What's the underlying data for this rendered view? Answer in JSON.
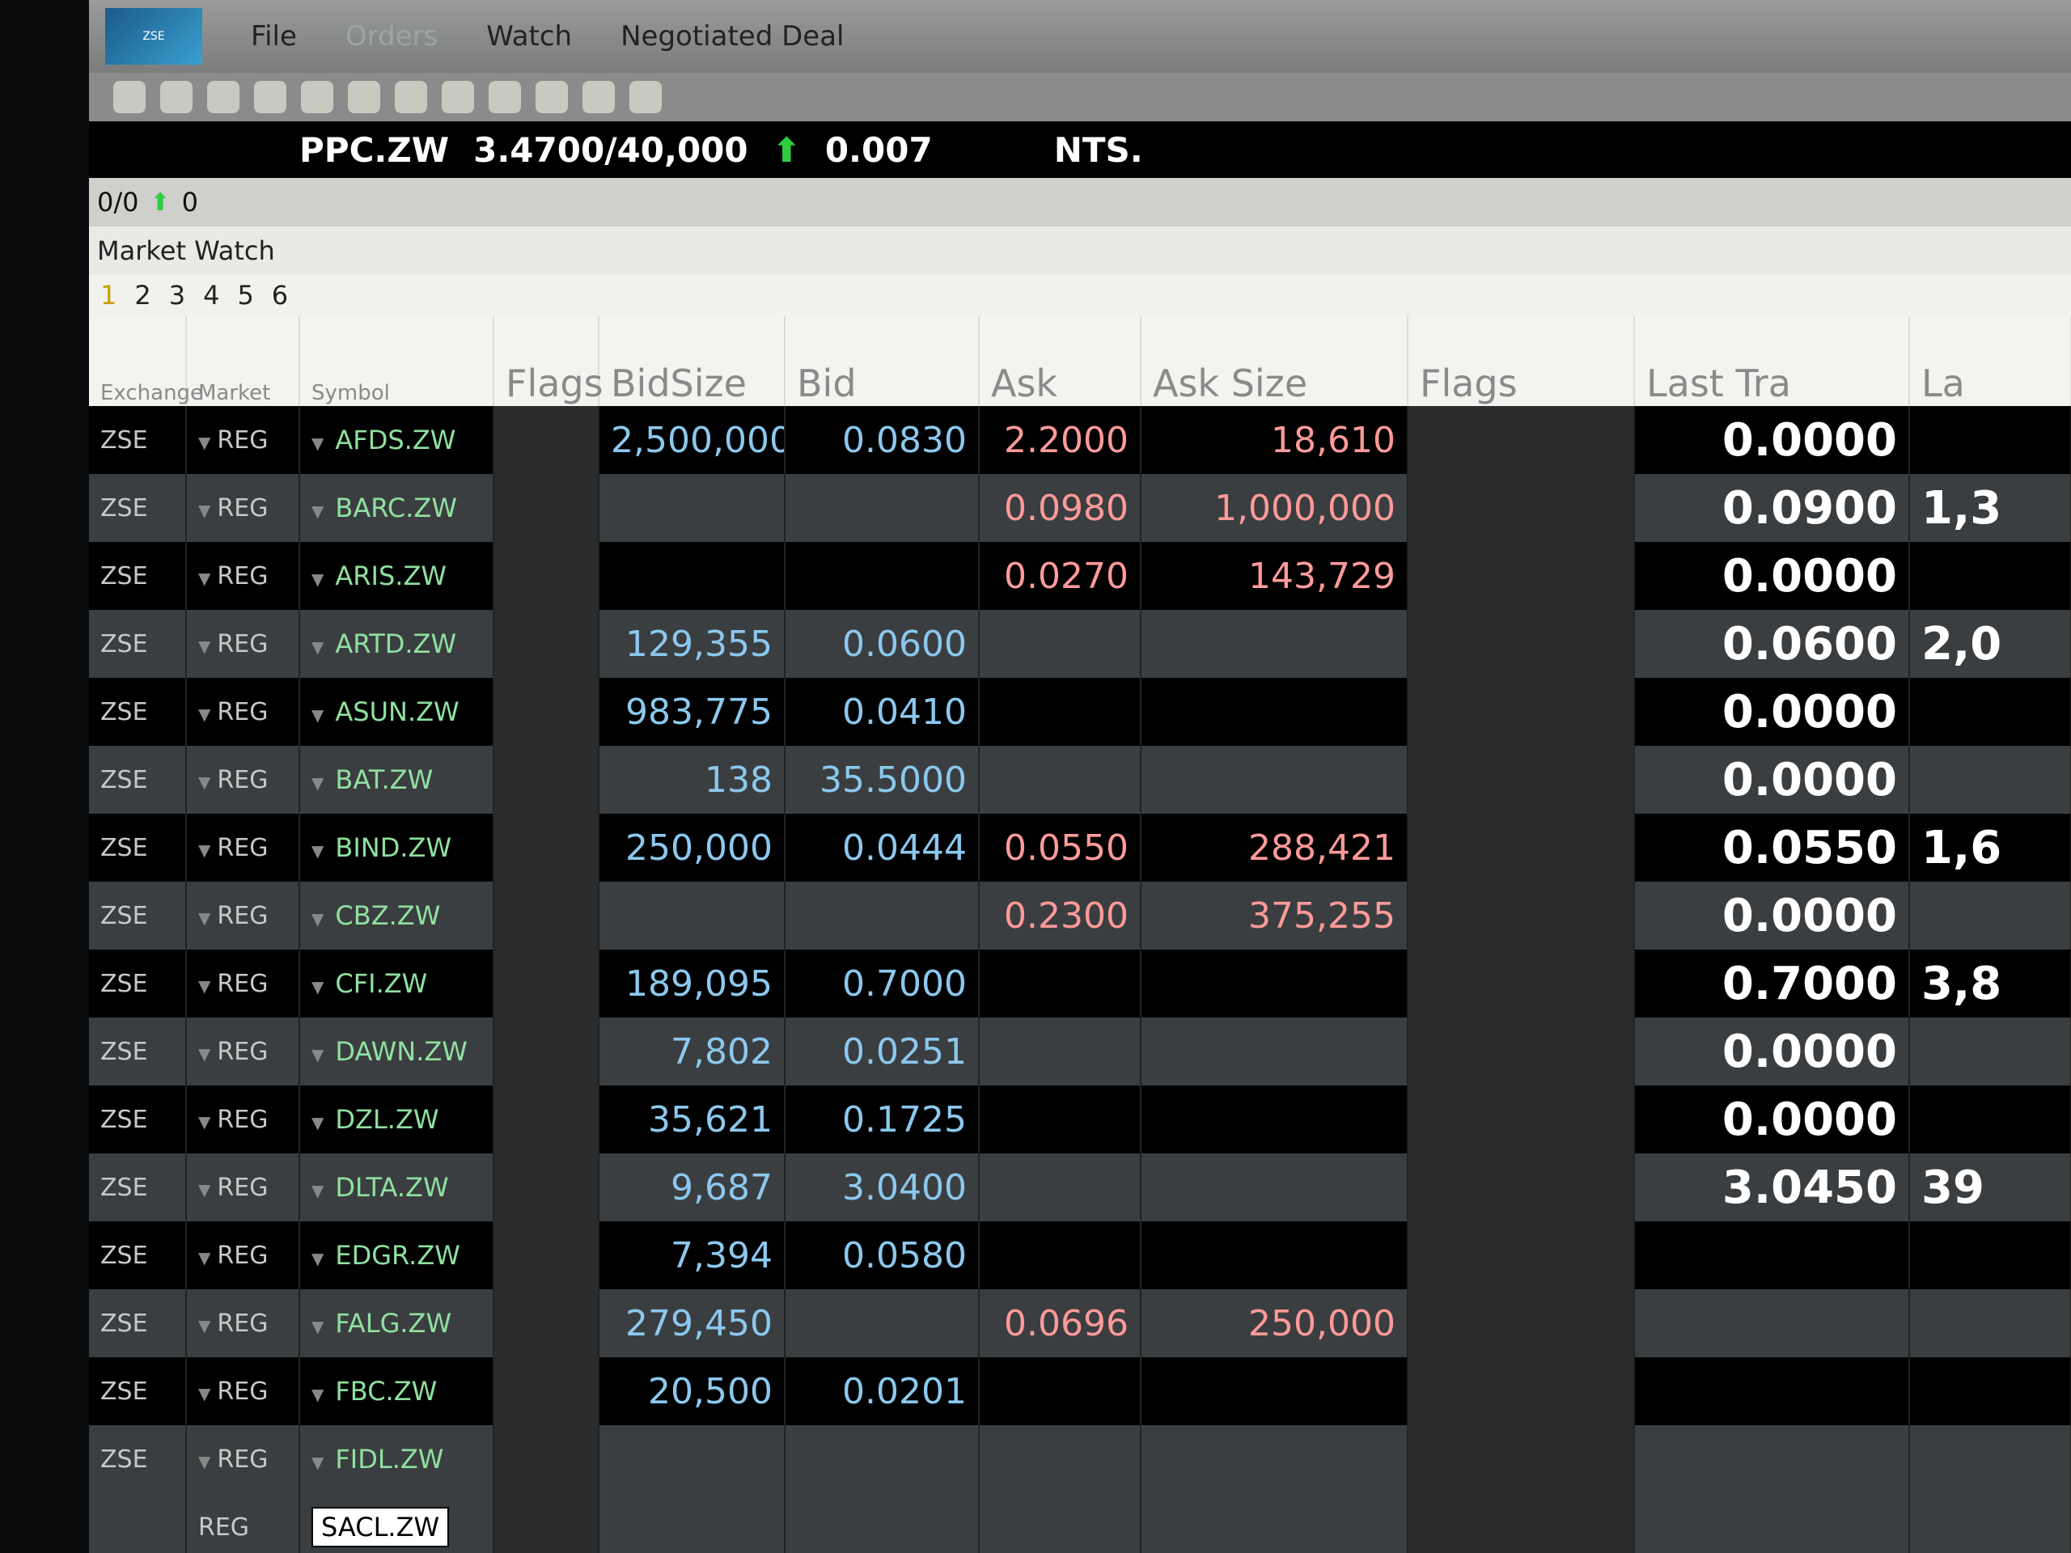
{
  "menu": {
    "items": [
      "File",
      "Orders",
      "Watch",
      "Negotiated Deal"
    ]
  },
  "ticker": {
    "symbol": "PPC.ZW",
    "quote": "3.4700/40,000",
    "change": "0.007",
    "next": "NTS."
  },
  "status": {
    "orders": "0/0",
    "count": "0"
  },
  "panel": {
    "title": "Market Watch",
    "tabs": [
      "1",
      "2",
      "3",
      "4",
      "5",
      "6"
    ]
  },
  "columns": [
    "Exchange",
    "Market",
    "Symbol",
    "Flags",
    "BidSize",
    "Bid",
    "Ask",
    "Ask Size",
    "Flags",
    "Last Tra",
    "La"
  ],
  "rows": [
    {
      "exchange": "ZSE",
      "market": "REG",
      "symbol": "AFDS.ZW",
      "bidsize": "2,500,000",
      "bid": "0.0830",
      "ask": "2.2000",
      "asksize": "18,610",
      "last": "0.0000",
      "lts": ""
    },
    {
      "exchange": "ZSE",
      "market": "REG",
      "symbol": "BARC.ZW",
      "bidsize": "",
      "bid": "",
      "ask": "0.0980",
      "asksize": "1,000,000",
      "last": "0.0900",
      "lts": "1,3"
    },
    {
      "exchange": "ZSE",
      "market": "REG",
      "symbol": "ARIS.ZW",
      "bidsize": "",
      "bid": "",
      "ask": "0.0270",
      "asksize": "143,729",
      "last": "0.0000",
      "lts": ""
    },
    {
      "exchange": "ZSE",
      "market": "REG",
      "symbol": "ARTD.ZW",
      "bidsize": "129,355",
      "bid": "0.0600",
      "ask": "",
      "asksize": "",
      "last": "0.0600",
      "lts": "2,0"
    },
    {
      "exchange": "ZSE",
      "market": "REG",
      "symbol": "ASUN.ZW",
      "bidsize": "983,775",
      "bid": "0.0410",
      "ask": "",
      "asksize": "",
      "last": "0.0000",
      "lts": ""
    },
    {
      "exchange": "ZSE",
      "market": "REG",
      "symbol": "BAT.ZW",
      "bidsize": "138",
      "bid": "35.5000",
      "ask": "",
      "asksize": "",
      "last": "0.0000",
      "lts": ""
    },
    {
      "exchange": "ZSE",
      "market": "REG",
      "symbol": "BIND.ZW",
      "bidsize": "250,000",
      "bid": "0.0444",
      "ask": "0.0550",
      "asksize": "288,421",
      "last": "0.0550",
      "lts": "1,6"
    },
    {
      "exchange": "ZSE",
      "market": "REG",
      "symbol": "CBZ.ZW",
      "bidsize": "",
      "bid": "",
      "ask": "0.2300",
      "asksize": "375,255",
      "last": "0.0000",
      "lts": ""
    },
    {
      "exchange": "ZSE",
      "market": "REG",
      "symbol": "CFI.ZW",
      "bidsize": "189,095",
      "bid": "0.7000",
      "ask": "",
      "asksize": "",
      "last": "0.7000",
      "lts": "3,8"
    },
    {
      "exchange": "ZSE",
      "market": "REG",
      "symbol": "DAWN.ZW",
      "bidsize": "7,802",
      "bid": "0.0251",
      "ask": "",
      "asksize": "",
      "last": "0.0000",
      "lts": ""
    },
    {
      "exchange": "ZSE",
      "market": "REG",
      "symbol": "DZL.ZW",
      "bidsize": "35,621",
      "bid": "0.1725",
      "ask": "",
      "asksize": "",
      "last": "0.0000",
      "lts": ""
    },
    {
      "exchange": "ZSE",
      "market": "REG",
      "symbol": "DLTA.ZW",
      "bidsize": "9,687",
      "bid": "3.0400",
      "ask": "",
      "asksize": "",
      "last": "3.0450",
      "lts": "39"
    },
    {
      "exchange": "ZSE",
      "market": "REG",
      "symbol": "EDGR.ZW",
      "bidsize": "7,394",
      "bid": "0.0580",
      "ask": "",
      "asksize": "",
      "last": "",
      "lts": ""
    },
    {
      "exchange": "ZSE",
      "market": "REG",
      "symbol": "FALG.ZW",
      "bidsize": "279,450",
      "bid": "",
      "ask": "0.0696",
      "asksize": "250,000",
      "last": "",
      "lts": ""
    },
    {
      "exchange": "ZSE",
      "market": "REG",
      "symbol": "FBC.ZW",
      "bidsize": "20,500",
      "bid": "0.0201",
      "ask": "",
      "asksize": "",
      "last": "",
      "lts": ""
    },
    {
      "exchange": "ZSE",
      "market": "REG",
      "symbol": "FIDL.ZW",
      "bidsize": "",
      "bid": "",
      "ask": "",
      "asksize": "",
      "last": "",
      "lts": ""
    }
  ],
  "new_row": {
    "market": "REG",
    "symbol_input": "SACL.ZW"
  },
  "colors": {
    "symbol": "#8fe0a0",
    "bid": "#8cc8ee",
    "ask": "#ff9a9a",
    "last": "#ffffff",
    "up": "#2ecc40"
  }
}
